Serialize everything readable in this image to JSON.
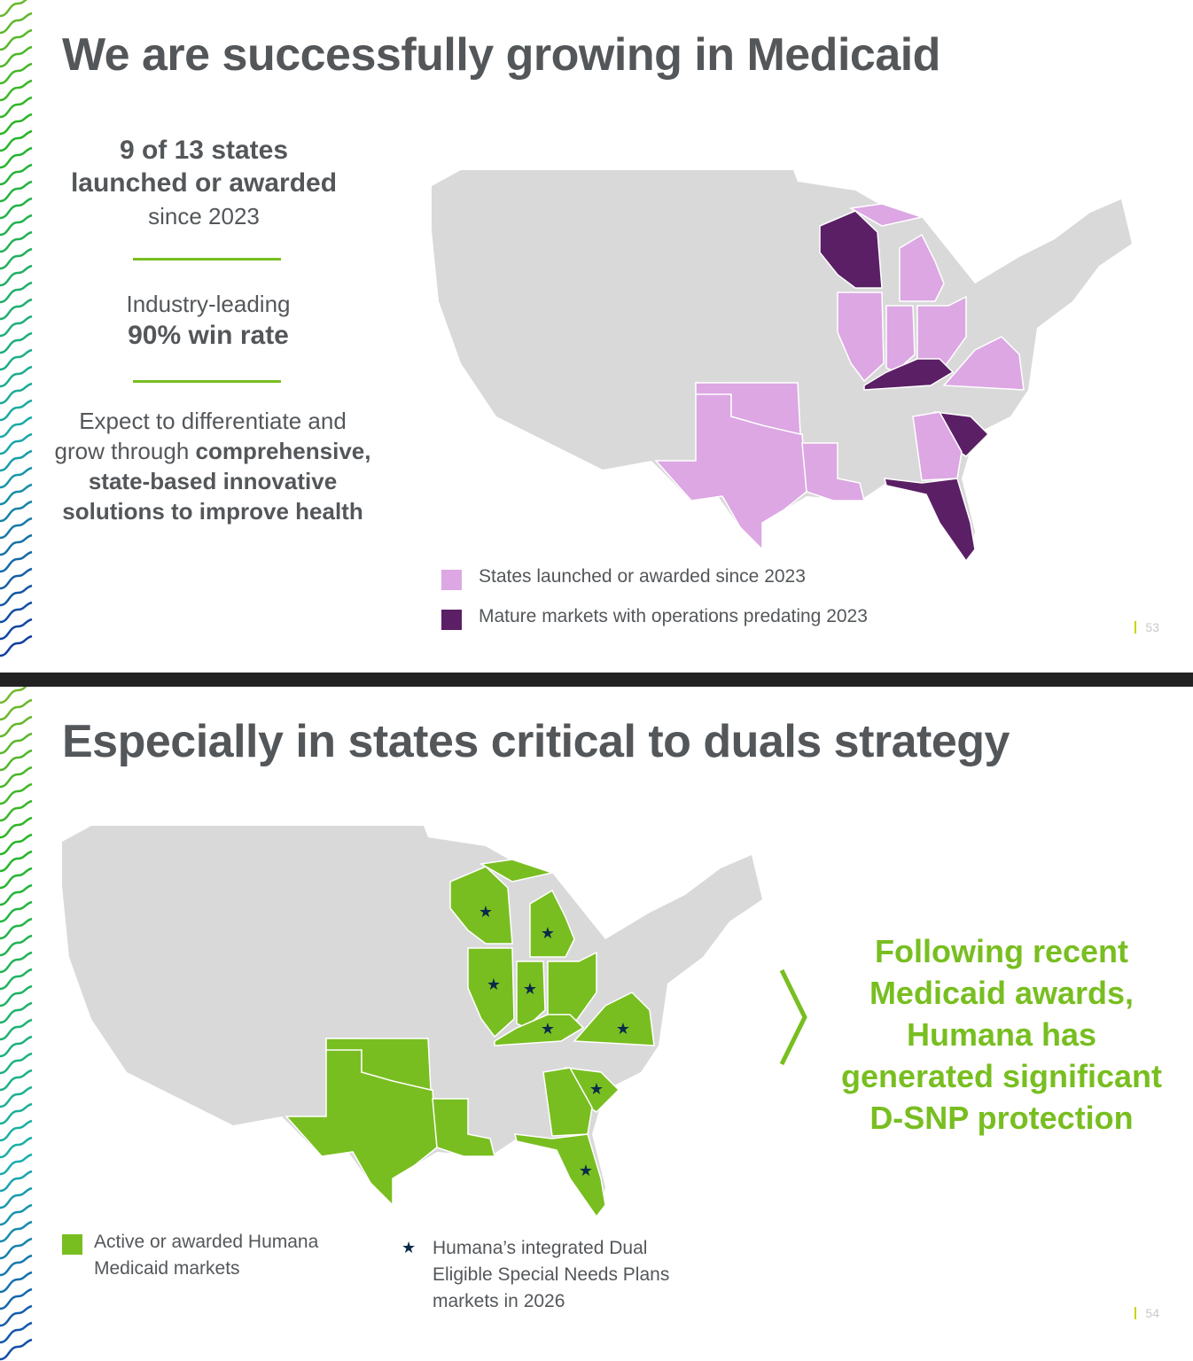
{
  "colors": {
    "light_purple": "#dca7e3",
    "dark_purple": "#5b1f66",
    "green": "#78be20",
    "gray": "#d9d9d9",
    "title": "#54575a",
    "star": "#0b2a4a"
  },
  "slide1": {
    "title": "We are successfully growing in Medicaid",
    "stat1": {
      "line1": "9 of 13 states",
      "line2": "launched or awarded",
      "line3": "since 2023"
    },
    "stat2": {
      "line1": "Industry-leading",
      "line2": "90% win rate"
    },
    "stat3": {
      "part1": "Expect to differentiate and",
      "part2": "grow through ",
      "part3": "comprehensive,",
      "part4": "state-based innovative",
      "part5": "solutions to improve health"
    },
    "legend": [
      {
        "label": "States launched or awarded since 2023",
        "color": "#dca7e3"
      },
      {
        "label": "Mature markets with operations predating 2023",
        "color": "#5b1f66"
      }
    ],
    "map": {
      "launched_states": [
        "MI",
        "IL",
        "IN",
        "OH",
        "VA",
        "TX",
        "OK",
        "LA",
        "GA"
      ],
      "mature_states": [
        "WI",
        "KY",
        "SC",
        "FL"
      ]
    },
    "page_number": "53"
  },
  "slide2": {
    "title": "Especially in states critical to duals strategy",
    "callout": [
      "Following recent",
      "Medicaid awards,",
      "Humana has",
      "generated significant",
      "D-SNP protection"
    ],
    "legend": {
      "active": "Active or awarded Humana Medicaid markets",
      "dsnp": "Humana’s integrated Dual Eligible Special Needs Plans markets in 2026",
      "star": "★"
    },
    "map": {
      "active_states": [
        "WI",
        "MI",
        "IL",
        "IN",
        "OH",
        "KY",
        "VA",
        "TX",
        "OK",
        "LA",
        "GA",
        "SC",
        "FL"
      ],
      "dsnp_states": [
        "WI",
        "MI",
        "IL",
        "IN",
        "KY",
        "VA",
        "SC",
        "FL"
      ]
    },
    "page_number": "54"
  }
}
